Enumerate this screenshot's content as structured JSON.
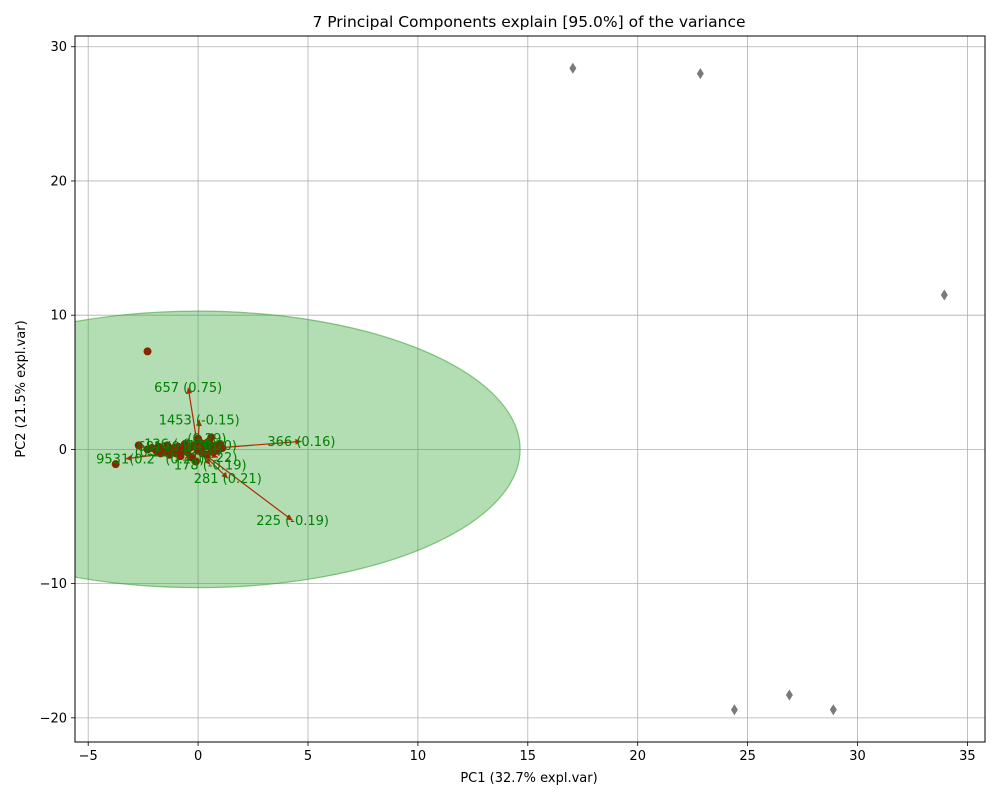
{
  "chart_data": {
    "type": "scatter",
    "title": "7 Principal Components explain [95.0%] of the variance",
    "xlabel": "PC1 (32.7% expl.var)",
    "ylabel": "PC2 (21.5% expl.var)",
    "xlim": [
      -5.6,
      35.8
    ],
    "ylim": [
      -21.8,
      30.8
    ],
    "xticks": [
      -5,
      0,
      5,
      10,
      15,
      20,
      25,
      30,
      35
    ],
    "yticks": [
      -20,
      -10,
      0,
      10,
      20,
      30
    ],
    "grid": true,
    "ellipse": {
      "center": [
        0,
        0
      ],
      "width": 29.3,
      "height": 20.6,
      "color": "#2ca02c"
    },
    "outliers": [
      {
        "x": 17.05,
        "y": 28.4
      },
      {
        "x": 22.85,
        "y": 28.0
      },
      {
        "x": 33.95,
        "y": 11.5
      },
      {
        "x": 26.9,
        "y": -18.3
      },
      {
        "x": 24.4,
        "y": -19.4
      },
      {
        "x": 28.9,
        "y": -19.4
      }
    ],
    "points": [
      {
        "x": -2.3,
        "y": 7.3
      },
      {
        "x": -3.75,
        "y": -1.1
      },
      {
        "x": -2.7,
        "y": 0.3
      },
      {
        "x": -2.3,
        "y": 0.0
      },
      {
        "x": -2.1,
        "y": 0.1
      },
      {
        "x": -1.9,
        "y": -0.1
      },
      {
        "x": -1.8,
        "y": 0.2
      },
      {
        "x": -1.6,
        "y": -0.2
      },
      {
        "x": -1.5,
        "y": 0.0
      },
      {
        "x": -1.4,
        "y": 0.3
      },
      {
        "x": -1.3,
        "y": -0.4
      },
      {
        "x": -1.1,
        "y": 0.1
      },
      {
        "x": -1.0,
        "y": -0.3
      },
      {
        "x": -0.9,
        "y": 0.2
      },
      {
        "x": -0.8,
        "y": -0.5
      },
      {
        "x": -0.7,
        "y": 0.0
      },
      {
        "x": -0.6,
        "y": 0.4
      },
      {
        "x": -0.5,
        "y": -0.2
      },
      {
        "x": -0.4,
        "y": 0.1
      },
      {
        "x": -0.3,
        "y": -0.6
      },
      {
        "x": -0.2,
        "y": 0.3
      },
      {
        "x": 0.0,
        "y": -0.1
      },
      {
        "x": 0.1,
        "y": 0.5
      },
      {
        "x": 0.2,
        "y": -0.3
      },
      {
        "x": 0.3,
        "y": 0.2
      },
      {
        "x": 0.4,
        "y": -0.4
      },
      {
        "x": 0.5,
        "y": 0.6
      },
      {
        "x": 0.6,
        "y": 0.0
      },
      {
        "x": 0.7,
        "y": -0.2
      },
      {
        "x": 0.8,
        "y": 0.3
      },
      {
        "x": 0.9,
        "y": -0.1
      },
      {
        "x": 1.0,
        "y": 0.4
      },
      {
        "x": 1.1,
        "y": 0.1
      },
      {
        "x": -1.2,
        "y": -0.1
      },
      {
        "x": -1.7,
        "y": -0.3
      },
      {
        "x": 0.0,
        "y": 0.8
      },
      {
        "x": -0.1,
        "y": -0.9
      },
      {
        "x": 0.6,
        "y": 0.9
      }
    ],
    "loadings": [
      {
        "x": -0.45,
        "y": 4.6,
        "label": "657 (0.75)"
      },
      {
        "x": 0.05,
        "y": 2.2,
        "label": "1453 (-0.15)"
      },
      {
        "x": 4.7,
        "y": 0.6,
        "label": "366 (0.16)"
      },
      {
        "x": 4.3,
        "y": -5.3,
        "label": "225 (-0.19)"
      },
      {
        "x": 1.35,
        "y": -2.15,
        "label": "281 (0.21)"
      },
      {
        "x": 0.55,
        "y": -1.15,
        "label": "178 (-0.19)"
      },
      {
        "x": -3.3,
        "y": -0.7,
        "label": "9531(0.2"
      },
      {
        "x": -1.4,
        "y": 0.2,
        "label": "681 (0.3)"
      },
      {
        "x": -0.8,
        "y": 0.4,
        "label": "136 (-0.29)"
      },
      {
        "x": 0.4,
        "y": 0.8,
        "label": "(0.29)"
      },
      {
        "x": 0.6,
        "y": 0.3,
        "label": "7 (0.20)"
      },
      {
        "x": 0.9,
        "y": -0.6,
        "label": "(0.22)"
      },
      {
        "x": -0.6,
        "y": -0.7,
        "label": "(0.21)"
      },
      {
        "x": -2.0,
        "y": -0.2,
        "label": "(0.22)"
      },
      {
        "x": 0.2,
        "y": 0.0,
        "label": "(0.20)"
      }
    ]
  }
}
